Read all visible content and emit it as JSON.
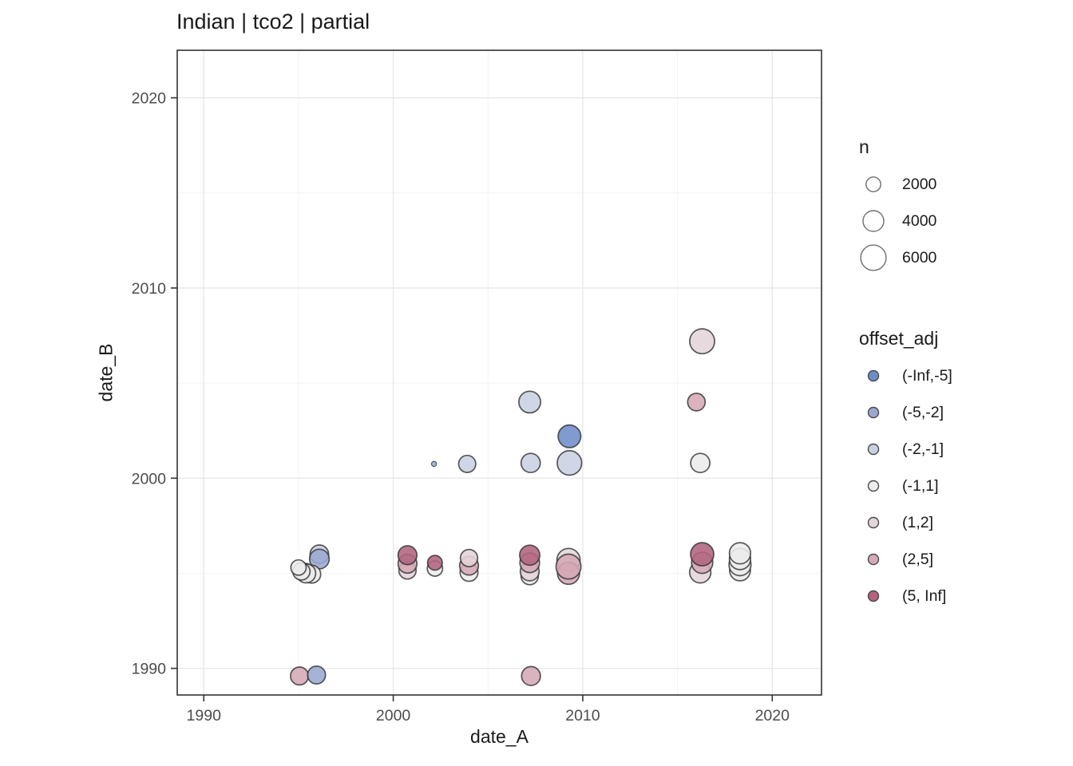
{
  "chart_data": {
    "type": "scatter",
    "title": "Indian | tco2 | partial",
    "xlabel": "date_A",
    "ylabel": "date_B",
    "x_ticks": [
      1990,
      2000,
      2010,
      2020
    ],
    "y_ticks": [
      1990,
      2000,
      2010,
      2020
    ],
    "x_minor": [
      1995,
      2005,
      2015
    ],
    "y_minor": [
      1995,
      2005,
      2015
    ],
    "xlim": [
      1988.6,
      2022.6
    ],
    "ylim": [
      1988.6,
      2022.5
    ],
    "grid": "on",
    "legend_position": "right",
    "size_legend": {
      "title": "n",
      "values": [
        2000,
        4000,
        6000
      ]
    },
    "color_legend": {
      "title": "offset_adj",
      "entries": [
        {
          "label": "(-Inf,-5]",
          "color": "#6d8dc9"
        },
        {
          "label": "(-5,-2]",
          "color": "#9ba7d2"
        },
        {
          "label": "(-2,-1]",
          "color": "#c9d0e1"
        },
        {
          "label": "(-1,1]",
          "color": "#ececec"
        },
        {
          "label": "(1,2]",
          "color": "#e4d5da"
        },
        {
          "label": "(2,5]",
          "color": "#d5a9b6"
        },
        {
          "label": "(5, Inf]",
          "color": "#b2647f"
        }
      ]
    },
    "points": [
      {
        "x": 1996.1,
        "y": 1996.0,
        "n": 3200,
        "cat": "(-2,-1]"
      },
      {
        "x": 1996.1,
        "y": 1995.75,
        "n": 3600,
        "cat": "(-5,-2]"
      },
      {
        "x": 1995.35,
        "y": 1995.1,
        "n": 2400,
        "cat": "(5, Inf]"
      },
      {
        "x": 1995.7,
        "y": 1994.95,
        "n": 3000,
        "cat": "(-1,1]"
      },
      {
        "x": 1995.4,
        "y": 1995.0,
        "n": 3400,
        "cat": "(-1,1]"
      },
      {
        "x": 1995.15,
        "y": 1995.1,
        "n": 2800,
        "cat": "(-1,1]"
      },
      {
        "x": 1995.0,
        "y": 1995.3,
        "n": 2200,
        "cat": "(-1,1]"
      },
      {
        "x": 1995.05,
        "y": 1989.6,
        "n": 3000,
        "cat": "(2,5]"
      },
      {
        "x": 1995.95,
        "y": 1989.65,
        "n": 3000,
        "cat": "(-5,-2]"
      },
      {
        "x": 2000.75,
        "y": 1995.15,
        "n": 2800,
        "cat": "(1,2]"
      },
      {
        "x": 2000.75,
        "y": 1995.5,
        "n": 3300,
        "cat": "(2,5]"
      },
      {
        "x": 2000.75,
        "y": 1995.95,
        "n": 3300,
        "cat": "(5, Inf]"
      },
      {
        "x": 2002.15,
        "y": 2000.75,
        "n": 250,
        "cat": "(-5,-2]"
      },
      {
        "x": 2002.2,
        "y": 1995.25,
        "n": 2200,
        "cat": "(-1,1]"
      },
      {
        "x": 2002.2,
        "y": 1995.55,
        "n": 2000,
        "cat": "(5, Inf]"
      },
      {
        "x": 2003.9,
        "y": 2000.75,
        "n": 2700,
        "cat": "(-2,-1]"
      },
      {
        "x": 2004.0,
        "y": 1995.05,
        "n": 3000,
        "cat": "(-1,1]"
      },
      {
        "x": 2004.0,
        "y": 1995.4,
        "n": 3300,
        "cat": "(2,5]"
      },
      {
        "x": 2004.0,
        "y": 1995.8,
        "n": 2800,
        "cat": "(1,2]"
      },
      {
        "x": 2007.2,
        "y": 2004.0,
        "n": 4400,
        "cat": "(-2,-1]"
      },
      {
        "x": 2007.25,
        "y": 2000.8,
        "n": 3400,
        "cat": "(-2,-1]"
      },
      {
        "x": 2007.2,
        "y": 1994.85,
        "n": 2800,
        "cat": "(-1,1]"
      },
      {
        "x": 2007.2,
        "y": 1995.1,
        "n": 3300,
        "cat": "(1,2]"
      },
      {
        "x": 2007.2,
        "y": 1995.55,
        "n": 3600,
        "cat": "(2,5]"
      },
      {
        "x": 2007.2,
        "y": 1995.95,
        "n": 3800,
        "cat": "(5, Inf]"
      },
      {
        "x": 2007.27,
        "y": 1989.6,
        "n": 3300,
        "cat": "(2,5]"
      },
      {
        "x": 2009.3,
        "y": 2002.2,
        "n": 4800,
        "cat": "(-Inf,-5]"
      },
      {
        "x": 2009.3,
        "y": 2000.8,
        "n": 5600,
        "cat": "(-2,-1]"
      },
      {
        "x": 2009.25,
        "y": 1995.7,
        "n": 5000,
        "cat": "(1,2]"
      },
      {
        "x": 2009.25,
        "y": 1995.0,
        "n": 4500,
        "cat": "(2,5]"
      },
      {
        "x": 2009.25,
        "y": 1995.35,
        "n": 5800,
        "cat": "(2,5]"
      },
      {
        "x": 2016.3,
        "y": 2007.2,
        "n": 5800,
        "cat": "(1,2]"
      },
      {
        "x": 2016.0,
        "y": 2004.0,
        "n": 2900,
        "cat": "(2,5]"
      },
      {
        "x": 2016.2,
        "y": 2000.8,
        "n": 3400,
        "cat": "(-1,1]"
      },
      {
        "x": 2016.2,
        "y": 1995.05,
        "n": 4200,
        "cat": "(1,2]"
      },
      {
        "x": 2016.3,
        "y": 1995.55,
        "n": 4200,
        "cat": "(2,5]"
      },
      {
        "x": 2016.3,
        "y": 1996.0,
        "n": 5000,
        "cat": "(5, Inf]"
      },
      {
        "x": 2018.3,
        "y": 1995.15,
        "n": 4000,
        "cat": "(-1,1]"
      },
      {
        "x": 2018.3,
        "y": 1995.45,
        "n": 4500,
        "cat": "(-1,1]"
      },
      {
        "x": 2018.3,
        "y": 1995.75,
        "n": 4200,
        "cat": "(-1,1]"
      },
      {
        "x": 2018.3,
        "y": 1996.05,
        "n": 4200,
        "cat": "(-1,1]"
      }
    ]
  },
  "colors": {
    "axis_text": "#4d4d4d",
    "title_text": "#1a1a1a",
    "panel_border": "#333333",
    "grid_major": "#e7e7e7",
    "grid_minor": "#f3f3f3",
    "point_stroke": "#2f2f2f",
    "size_key_stroke": "#6f6f6f",
    "color_key_stroke": "#4a4a4a"
  }
}
